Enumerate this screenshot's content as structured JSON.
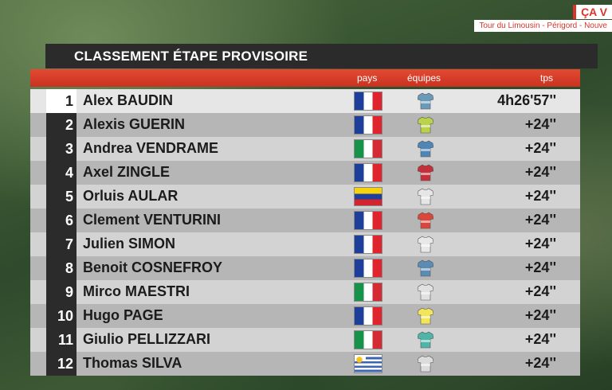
{
  "broadcaster": {
    "logo": "ÇA V",
    "race": "Tour du Limousin - Périgord - Nouve"
  },
  "title": "CLASSEMENT ÉTAPE PROVISOIRE",
  "headers": {
    "pays": "pays",
    "equipes": "équipes",
    "tps": "tps"
  },
  "riders": [
    {
      "rank": "1",
      "name": "Alex BAUDIN",
      "flag": "fr",
      "jersey": "#6a9ab8",
      "time": "4h26'57''"
    },
    {
      "rank": "2",
      "name": "Alexis GUERIN",
      "flag": "fr",
      "jersey": "#b9d24a",
      "time": "+24''"
    },
    {
      "rank": "3",
      "name": "Andrea VENDRAME",
      "flag": "it",
      "jersey": "#4f86b5",
      "time": "+24''"
    },
    {
      "rank": "4",
      "name": "Axel ZINGLE",
      "flag": "fr",
      "jersey": "#c4303a",
      "time": "+24''"
    },
    {
      "rank": "5",
      "name": "Orluis AULAR",
      "flag": "ve",
      "jersey": "#e6e6e6",
      "time": "+24''"
    },
    {
      "rank": "6",
      "name": "Clement VENTURINI",
      "flag": "fr",
      "jersey": "#d9473a",
      "time": "+24''"
    },
    {
      "rank": "7",
      "name": "Julien SIMON",
      "flag": "fr",
      "jersey": "#e8e8e8",
      "time": "+24''"
    },
    {
      "rank": "8",
      "name": "Benoit COSNEFROY",
      "flag": "fr",
      "jersey": "#5b8cb4",
      "time": "+24''"
    },
    {
      "rank": "9",
      "name": "Mirco MAESTRI",
      "flag": "it",
      "jersey": "#e1e1e1",
      "time": "+24''"
    },
    {
      "rank": "10",
      "name": "Hugo PAGE",
      "flag": "fr",
      "jersey": "#f2e55a",
      "time": "+24''"
    },
    {
      "rank": "11",
      "name": "Giulio PELLIZZARI",
      "flag": "it",
      "jersey": "#4fb5a8",
      "time": "+24''"
    },
    {
      "rank": "12",
      "name": "Thomas SILVA",
      "flag": "uy",
      "jersey": "#dcdcdc",
      "time": "+24''"
    }
  ]
}
